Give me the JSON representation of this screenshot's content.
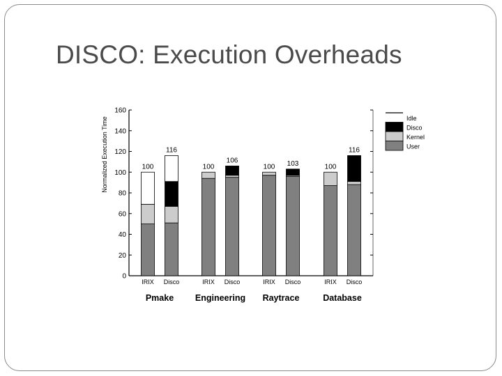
{
  "slide": {
    "title": "DISCO: Execution Overheads"
  },
  "chart_data": {
    "type": "bar",
    "stacked": true,
    "ylabel": "Normalized Execution Time",
    "ylim": [
      0,
      160
    ],
    "yticks": [
      0,
      20,
      40,
      60,
      80,
      100,
      120,
      140,
      160
    ],
    "groups": [
      "Pmake",
      "Engineering",
      "Raytrace",
      "Database"
    ],
    "bar_labels": [
      "IRIX",
      "Disco"
    ],
    "series_order": [
      "User",
      "Kernel",
      "Disco",
      "Idle"
    ],
    "legend": [
      {
        "name": "Idle",
        "color": "#ffffff"
      },
      {
        "name": "Disco",
        "color": "#000000"
      },
      {
        "name": "Kernel",
        "color": "#cccccc"
      },
      {
        "name": "User",
        "color": "#808080"
      }
    ],
    "series_colors": {
      "User": "#808080",
      "Kernel": "#cccccc",
      "Disco": "#000000",
      "Idle": "#ffffff"
    },
    "bars": [
      {
        "group": "Pmake",
        "label": "IRIX",
        "total": 100,
        "User": 50,
        "Kernel": 19,
        "Disco": 0,
        "Idle": 31
      },
      {
        "group": "Pmake",
        "label": "Disco",
        "total": 116,
        "User": 51,
        "Kernel": 16,
        "Disco": 24,
        "Idle": 25
      },
      {
        "group": "Engineering",
        "label": "IRIX",
        "total": 100,
        "User": 94,
        "Kernel": 6,
        "Disco": 0,
        "Idle": 0
      },
      {
        "group": "Engineering",
        "label": "Disco",
        "total": 106,
        "User": 95,
        "Kernel": 2,
        "Disco": 9,
        "Idle": 0
      },
      {
        "group": "Raytrace",
        "label": "IRIX",
        "total": 100,
        "User": 97,
        "Kernel": 3,
        "Disco": 0,
        "Idle": 0
      },
      {
        "group": "Raytrace",
        "label": "Disco",
        "total": 103,
        "User": 96,
        "Kernel": 1,
        "Disco": 6,
        "Idle": 0
      },
      {
        "group": "Database",
        "label": "IRIX",
        "total": 100,
        "User": 87,
        "Kernel": 13,
        "Disco": 0,
        "Idle": 0
      },
      {
        "group": "Database",
        "label": "Disco",
        "total": 116,
        "User": 88,
        "Kernel": 3,
        "Disco": 25,
        "Idle": 0
      }
    ]
  }
}
